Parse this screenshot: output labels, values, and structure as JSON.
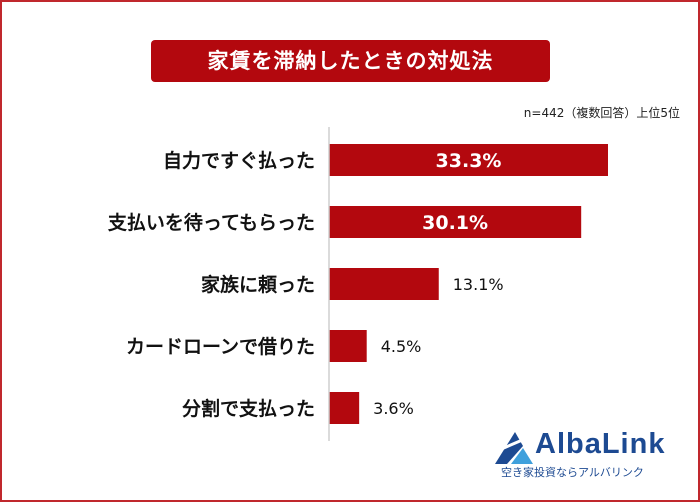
{
  "chart_data": {
    "type": "bar",
    "orientation": "horizontal",
    "title": "家賃を滞納したときの対処法",
    "note": "n=442（複数回答）上位5位",
    "categories": [
      "自力ですぐ払った",
      "支払いを待ってもらった",
      "家族に頼った",
      "カードローンで借りた",
      "分割で支払った"
    ],
    "values": [
      33.3,
      30.1,
      13.1,
      4.5,
      3.6
    ],
    "value_labels": [
      "33.3%",
      "30.1%",
      "13.1%",
      "4.5%",
      "3.6%"
    ],
    "xlim": [
      0,
      33.3
    ],
    "bar_color": "#b3080e",
    "grid": false,
    "legend": "none"
  },
  "logo": {
    "name": "AlbaLink",
    "tagline": "空き家投資ならアルバリンク",
    "color": "#1d4a92"
  }
}
